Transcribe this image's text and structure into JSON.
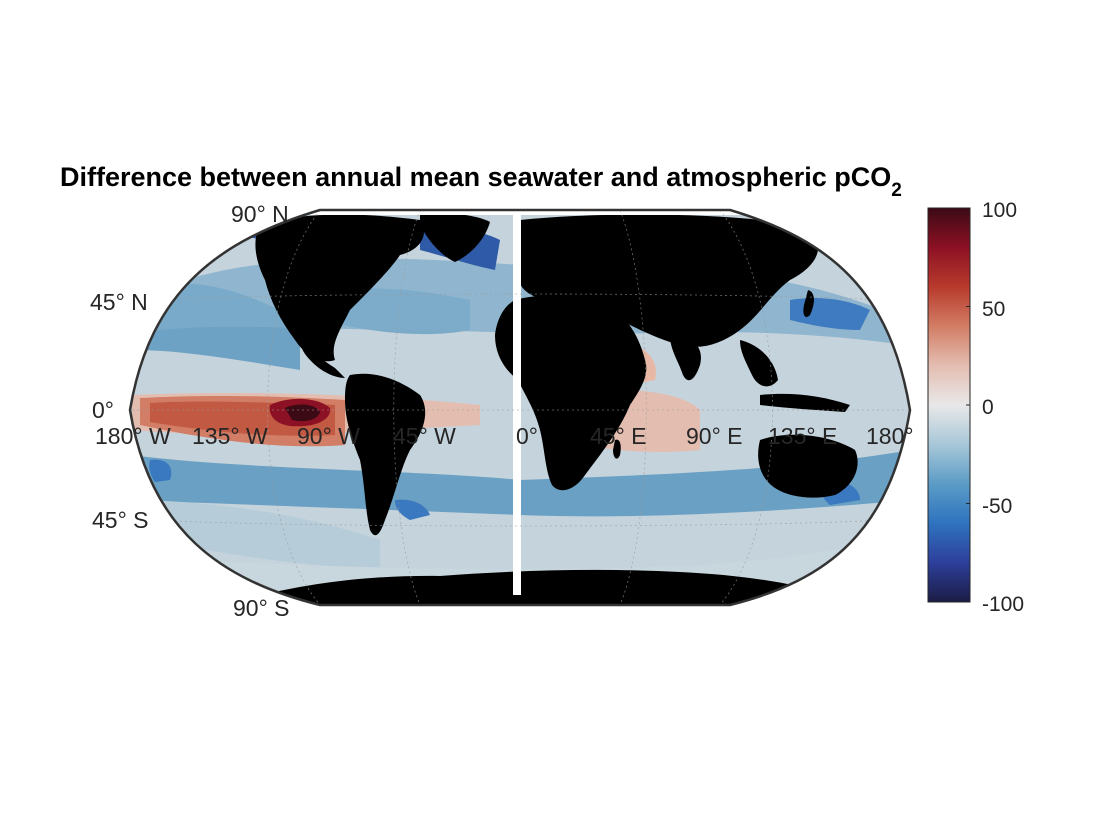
{
  "title": {
    "main": "Difference between annual mean seawater and atmospheric pCO",
    "subscript": "2"
  },
  "map": {
    "projection": "Robinson",
    "land_color": "#000000",
    "lat_labels": [
      "90° N",
      "45° N",
      "0°",
      "45° S",
      "90° S"
    ],
    "lon_labels": [
      "180° W",
      "135° W",
      "90° W",
      "45° W",
      "0°",
      "45° E",
      "90° E",
      "135° E",
      "180°"
    ]
  },
  "colorbar": {
    "min": -100,
    "max": 100,
    "ticks": [
      "100",
      "50",
      "0",
      "-50",
      "-100"
    ],
    "colors": [
      "#1b1c45",
      "#2d3f9a",
      "#2f73bf",
      "#5b9cc6",
      "#a8c7d8",
      "#e8e8e8",
      "#e4bdb1",
      "#d27d65",
      "#b83a2c",
      "#8c1124",
      "#3c0a15"
    ]
  }
}
